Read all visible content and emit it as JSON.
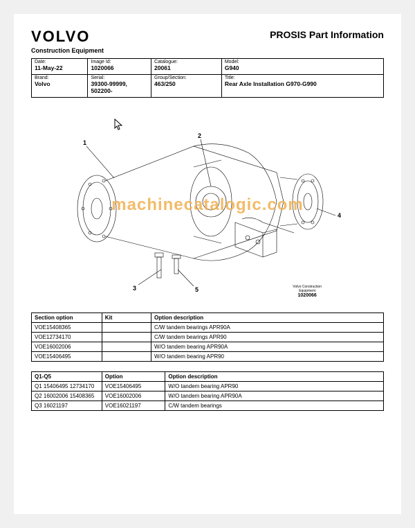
{
  "header": {
    "brand_logo_text": "VOLVO",
    "page_title": "PROSIS Part Information",
    "subtitle": "Construction Equipment"
  },
  "info_table": {
    "rows": [
      [
        {
          "label": "Date:",
          "value": "11-May-22"
        },
        {
          "label": "Image Id:",
          "value": "1020066"
        },
        {
          "label": "Catalogue:",
          "value": "20061"
        },
        {
          "label": "Model:",
          "value": "G940"
        }
      ],
      [
        {
          "label": "Brand:",
          "value": "Volvo"
        },
        {
          "label": "Serial:",
          "value": "39300-99999, 502200-"
        },
        {
          "label": "Group/Section:",
          "value": "463/250"
        },
        {
          "label": "Title:",
          "value": "Rear Axle Installation G970-G990"
        }
      ]
    ]
  },
  "diagram": {
    "callouts": [
      "1",
      "2",
      "3",
      "4",
      "5"
    ],
    "caption_line1": "Volvo Construction",
    "caption_line2": "Equipment",
    "caption_number": "1020066"
  },
  "watermark": "machinecatalogic.com",
  "section_table": {
    "headers": [
      "Section option",
      "Kit",
      "Option description"
    ],
    "rows": [
      [
        "VOE15408365",
        "",
        "C/W tandem bearings APR90A"
      ],
      [
        "VOE12734170",
        "",
        "C/W tandem bearings APR90"
      ],
      [
        "VOE16002006",
        "",
        "W/O tandem bearing APR90A"
      ],
      [
        "VOE15406495",
        "",
        "W/O tandem bearing APR90"
      ]
    ]
  },
  "q_table": {
    "headers": [
      "Q1-Q5",
      "Option",
      "Option description"
    ],
    "rows": [
      [
        "Q1 15406495 12734170",
        "VOE15406495",
        "W/O tandem bearing APR90"
      ],
      [
        "Q2 16002006 15408365",
        "VOE16002006",
        "W/O tandem bearing APR90A"
      ],
      [
        "Q3 16021197",
        "VOE16021197",
        "C/W tandem bearings"
      ]
    ]
  },
  "col_widths": {
    "info": [
      "16%",
      "18%",
      "20%",
      "46%"
    ],
    "section": [
      "20%",
      "14%",
      "66%"
    ],
    "q": [
      "20%",
      "18%",
      "62%"
    ]
  }
}
